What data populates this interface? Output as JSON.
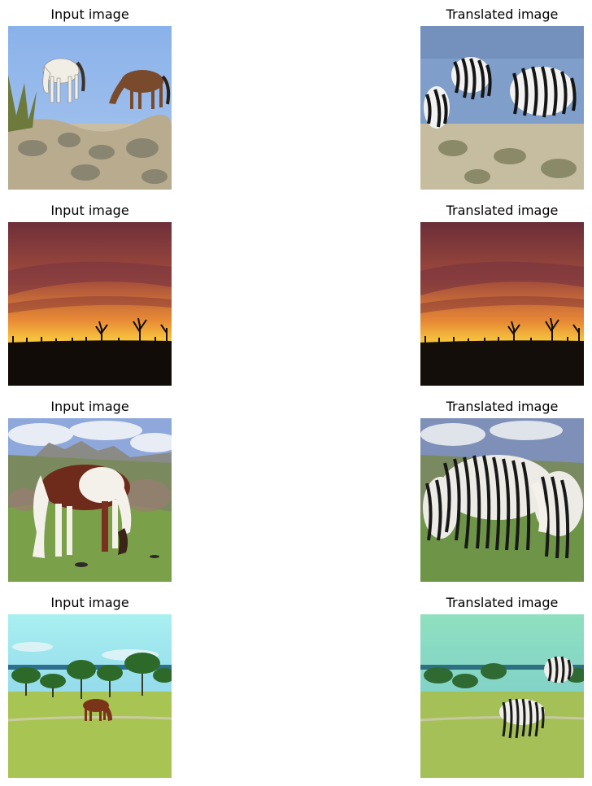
{
  "rows": [
    {
      "input_title": "Input image",
      "output_title": "Translated image",
      "input_subject": "two horses grazing in desert scrub",
      "output_subject": "two zebras grazing in desert scrub"
    },
    {
      "input_title": "Input image",
      "output_title": "Translated image",
      "input_subject": "sunset over silhouetted trees",
      "output_subject": "sunset over silhouetted trees"
    },
    {
      "input_title": "Input image",
      "output_title": "Translated image",
      "input_subject": "pinto horse grazing on hillside",
      "output_subject": "zebras grazing on hillside"
    },
    {
      "input_title": "Input image",
      "output_title": "Translated image",
      "input_subject": "brown horse in green meadow with trees",
      "output_subject": "zebra in green meadow with trees"
    }
  ],
  "colors": {
    "sky_blue": "#8fb4e8",
    "desert_ground": "#c9bda4",
    "sunset_orange": "#f0a030",
    "meadow_green": "#9ab84a"
  }
}
